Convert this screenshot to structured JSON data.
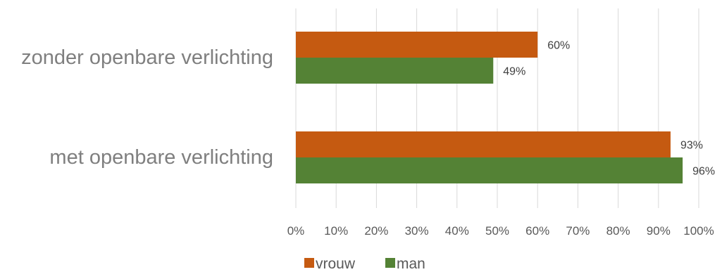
{
  "chart_data": {
    "type": "bar",
    "orientation": "horizontal",
    "categories": [
      "zonder openbare verlichting",
      "met openbare verlichting"
    ],
    "series": [
      {
        "name": "vrouw",
        "color": "#c55a11",
        "values": [
          60,
          93
        ],
        "labels": [
          "60%",
          "93%"
        ]
      },
      {
        "name": "man",
        "color": "#548235",
        "values": [
          49,
          96
        ],
        "labels": [
          "49%",
          "96%"
        ]
      }
    ],
    "x_ticks": [
      "0%",
      "10%",
      "20%",
      "30%",
      "40%",
      "50%",
      "60%",
      "70%",
      "80%",
      "90%",
      "100%"
    ],
    "xlim": [
      0,
      100
    ],
    "grid": true,
    "legend_position": "bottom"
  }
}
